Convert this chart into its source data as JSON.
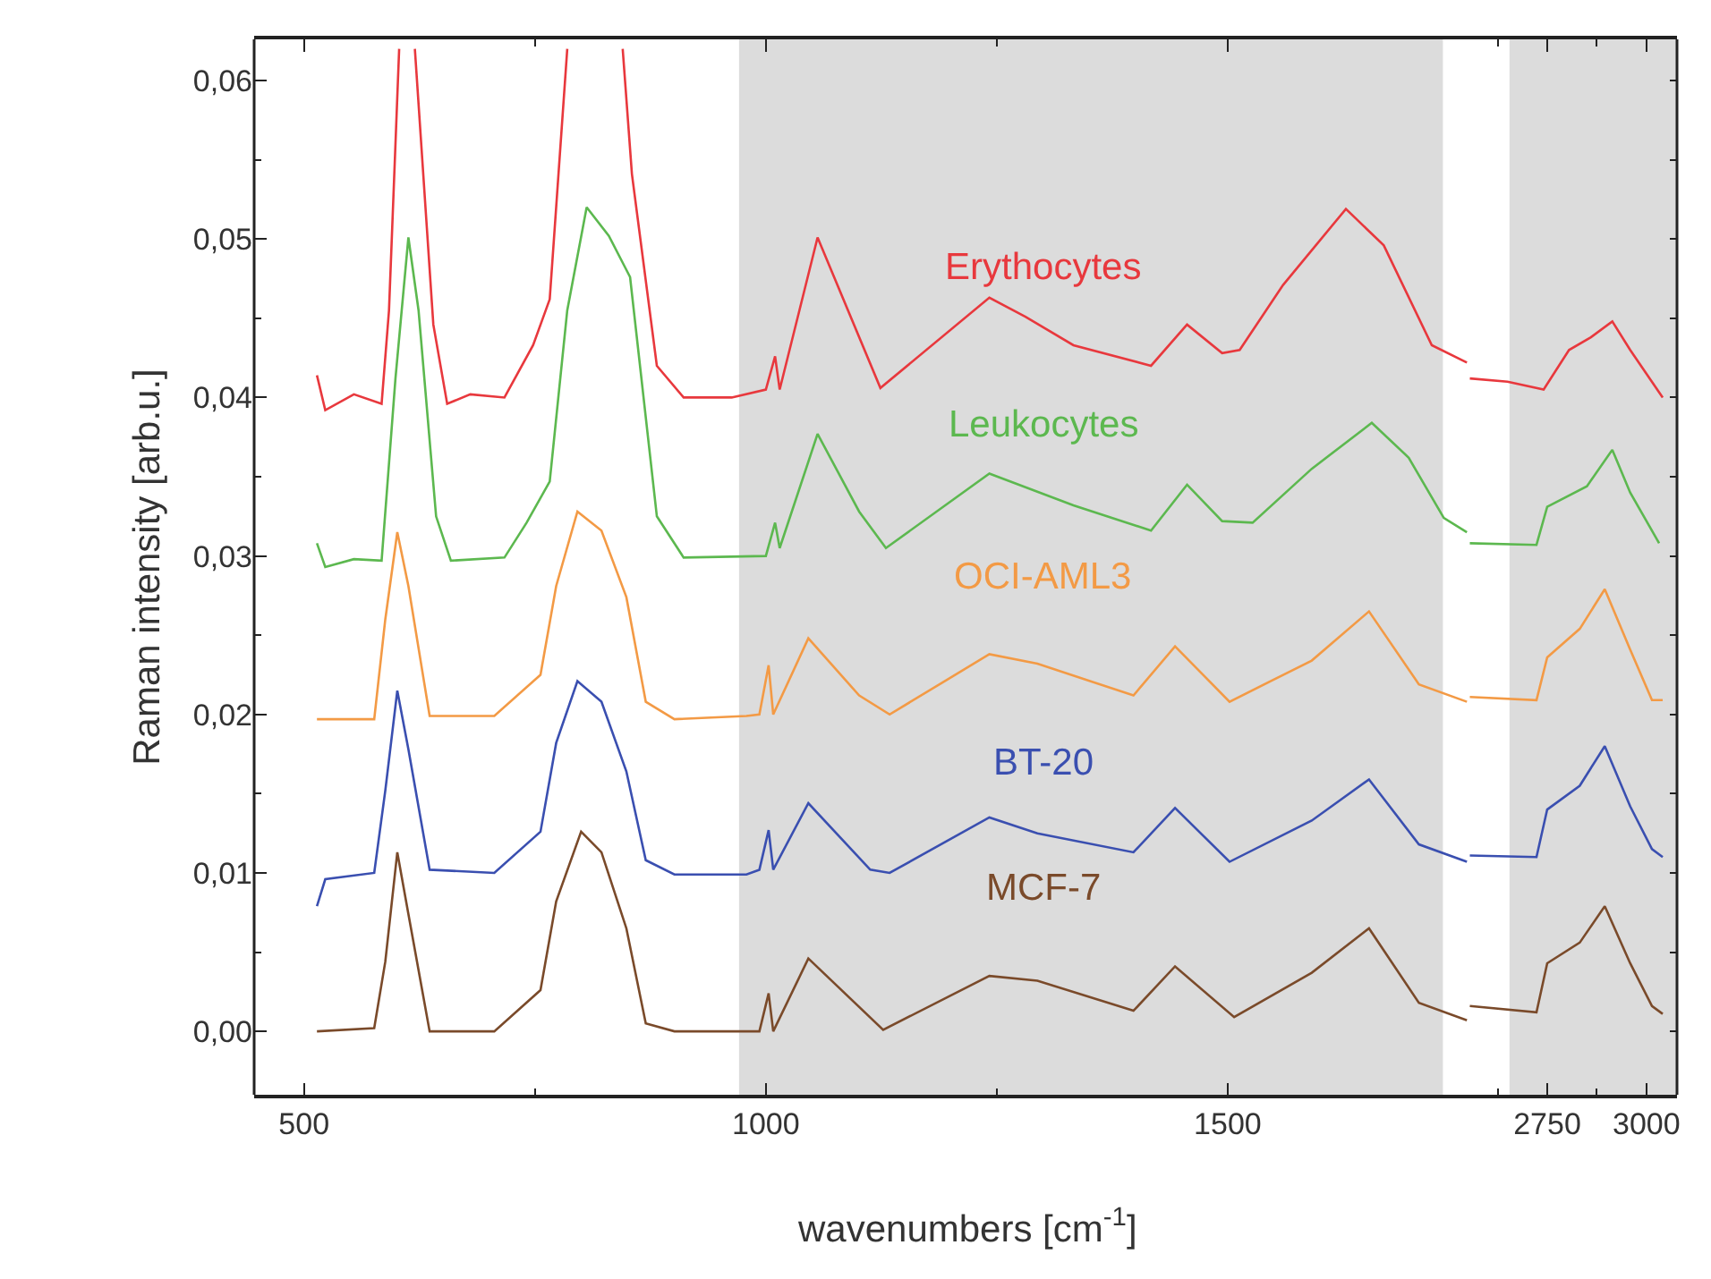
{
  "chart_data": [
    {
      "type": "line",
      "xlabel": "wavenumbers [cm$^{-1}$]",
      "ylabel": "Raman intensity [arb.u.]",
      "xlim": [
        446,
        1760
      ],
      "ylim": [
        -0.004,
        0.0626
      ],
      "xticks": [
        500,
        {
          "value": 750,
          "label": null
        },
        1000,
        {
          "value": 1250,
          "label": null
        },
        1500
      ],
      "yticks": [
        {
          "value": 0,
          "label": "0,00"
        },
        {
          "value": 0.005,
          "label": null
        },
        {
          "value": 0.01,
          "label": "0,01"
        },
        {
          "value": 0.015,
          "label": null
        },
        {
          "value": 0.02,
          "label": "0,02"
        },
        {
          "value": 0.025,
          "label": null
        },
        {
          "value": 0.03,
          "label": "0,03"
        },
        {
          "value": 0.035,
          "label": null
        },
        {
          "value": 0.04,
          "label": "0,04"
        },
        {
          "value": 0.045,
          "label": null
        },
        {
          "value": 0.05,
          "label": "0,05"
        },
        {
          "value": 0.055,
          "label": null
        },
        {
          "value": 0.06,
          "label": "0,06"
        }
      ],
      "bands": [
        {
          "axis": "x",
          "from": 971,
          "to": 1733,
          "color": "#dcdcdc"
        }
      ],
      "series": [
        {
          "name": "Erythocytes",
          "color": "#e8383d",
          "x": [
            514,
            523,
            554,
            584,
            592,
            603,
            611,
            620,
            640,
            655,
            680,
            717,
            748,
            766,
            785,
            815,
            845,
            855,
            882,
            911,
            963,
            1000,
            1010,
            1015,
            1056,
            1124,
            1242,
            1281,
            1333,
            1417,
            1456,
            1494,
            1513,
            1560,
            1628,
            1669,
            1721,
            1759
          ],
          "values": [
            0.0414,
            0.0392,
            0.0402,
            0.0396,
            0.0455,
            0.062,
            null,
            0.062,
            0.0446,
            0.0396,
            0.0402,
            0.04,
            0.0433,
            0.0462,
            0.062,
            null,
            0.062,
            0.0541,
            0.042,
            0.04,
            0.04,
            0.0405,
            0.0426,
            0.0405,
            0.0501,
            0.0406,
            0.0463,
            0.0451,
            0.0433,
            0.042,
            0.0446,
            0.0428,
            0.043,
            0.0471,
            0.0519,
            0.0496,
            0.0433,
            0.0422
          ]
        },
        {
          "name": "Leukocytes",
          "color": "#5cb84f",
          "x": [
            514,
            523,
            554,
            584,
            599,
            613,
            624,
            643,
            659,
            717,
            741,
            766,
            785,
            806,
            830,
            853,
            882,
            911,
            1000,
            1010,
            1015,
            1056,
            1101,
            1130,
            1242,
            1333,
            1417,
            1456,
            1494,
            1527,
            1591,
            1656,
            1696,
            1734,
            1759
          ],
          "values": [
            0.0308,
            0.0293,
            0.0298,
            0.0297,
            0.0412,
            0.0501,
            0.0455,
            0.0325,
            0.0297,
            0.0299,
            0.0321,
            0.0347,
            0.0455,
            0.052,
            0.0502,
            0.0476,
            0.0325,
            0.0299,
            0.03,
            0.0321,
            0.0305,
            0.0377,
            0.0328,
            0.0305,
            0.0352,
            0.0332,
            0.0316,
            0.0345,
            0.0322,
            0.0321,
            0.0355,
            0.0384,
            0.0362,
            0.0324,
            0.0315
          ]
        },
        {
          "name": "OCI-AML3",
          "color": "#f39a45",
          "x": [
            514,
            576,
            588,
            601,
            613,
            636,
            706,
            756,
            773,
            796,
            822,
            849,
            870,
            901,
            979,
            993,
            1003,
            1008,
            1046,
            1101,
            1134,
            1242,
            1294,
            1398,
            1443,
            1502,
            1591,
            1653,
            1707,
            1759
          ],
          "values": [
            0.0197,
            0.0197,
            0.026,
            0.0315,
            0.0281,
            0.0199,
            0.0199,
            0.0225,
            0.0281,
            0.0328,
            0.0316,
            0.0274,
            0.0208,
            0.0197,
            0.0199,
            0.02,
            0.0231,
            0.02,
            0.0248,
            0.0212,
            0.02,
            0.0238,
            0.0232,
            0.0212,
            0.0243,
            0.0208,
            0.0234,
            0.0265,
            0.0219,
            0.0208
          ]
        },
        {
          "name": "BT-20",
          "color": "#3a4fb0",
          "x": [
            514,
            523,
            576,
            588,
            601,
            613,
            636,
            706,
            756,
            773,
            796,
            822,
            849,
            870,
            901,
            979,
            993,
            1003,
            1008,
            1046,
            1113,
            1134,
            1242,
            1294,
            1398,
            1443,
            1502,
            1591,
            1653,
            1707,
            1759
          ],
          "values": [
            0.0079,
            0.0096,
            0.01,
            0.0152,
            0.0215,
            0.0178,
            0.0102,
            0.01,
            0.0126,
            0.0182,
            0.0221,
            0.0208,
            0.0164,
            0.0108,
            0.0099,
            0.0099,
            0.0102,
            0.0127,
            0.0102,
            0.0144,
            0.0102,
            0.01,
            0.0135,
            0.0125,
            0.0113,
            0.0141,
            0.0107,
            0.0133,
            0.0159,
            0.0118,
            0.0107
          ]
        },
        {
          "name": "MCF-7",
          "color": "#7a4a2a",
          "x": [
            514,
            576,
            588,
            601,
            613,
            636,
            706,
            756,
            773,
            800,
            822,
            849,
            870,
            901,
            979,
            993,
            1003,
            1008,
            1046,
            1127,
            1242,
            1294,
            1398,
            1443,
            1507,
            1591,
            1653,
            1707,
            1759
          ],
          "values": [
            0.0,
            0.0002,
            0.0044,
            0.0113,
            0.0074,
            0.0,
            0.0,
            0.0026,
            0.0082,
            0.0126,
            0.0113,
            0.0065,
            0.0005,
            0.0,
            0.0,
            0.0,
            0.0024,
            0.0,
            0.0046,
            0.0001,
            0.0035,
            0.0032,
            0.0013,
            0.0041,
            0.0009,
            0.0037,
            0.0065,
            0.0018,
            0.0007
          ]
        }
      ]
    },
    {
      "type": "line",
      "tick_labels": "x",
      "xlim": [
        2550,
        3077
      ],
      "ylim": [
        -0.004,
        0.0626
      ],
      "xticks": [
        {
          "value": 2625,
          "label": null
        },
        2750,
        {
          "value": 2875,
          "label": null
        },
        3000
      ],
      "yticks": [
        {
          "value": 0,
          "label": null
        },
        {
          "value": 0.005,
          "label": null
        },
        {
          "value": 0.01,
          "label": null
        },
        {
          "value": 0.015,
          "label": null
        },
        {
          "value": 0.02,
          "label": null
        },
        {
          "value": 0.025,
          "label": null
        },
        {
          "value": 0.03,
          "label": null
        },
        {
          "value": 0.035,
          "label": null
        },
        {
          "value": 0.04,
          "label": null
        },
        {
          "value": 0.045,
          "label": null
        },
        {
          "value": 0.05,
          "label": null
        },
        {
          "value": 0.055,
          "label": null
        },
        {
          "value": 0.06,
          "label": null
        }
      ],
      "bands": [
        {
          "axis": "x",
          "from": 2655,
          "to": 3077,
          "color": "#dcdcdc"
        }
      ],
      "series": [
        {
          "color": "#e8383d",
          "x": [
            2555,
            2650,
            2741,
            2805,
            2860,
            2914,
            2959,
            3041
          ],
          "values": [
            0.0412,
            0.041,
            0.0405,
            0.043,
            0.0438,
            0.0448,
            0.043,
            0.04
          ]
        },
        {
          "color": "#5cb84f",
          "x": [
            2555,
            2723,
            2750,
            2850,
            2914,
            2959,
            3032
          ],
          "values": [
            0.0308,
            0.0307,
            0.0331,
            0.0344,
            0.0367,
            0.034,
            0.0308
          ]
        },
        {
          "color": "#f39a45",
          "x": [
            2555,
            2723,
            2750,
            2832,
            2895,
            2959,
            3014,
            3041
          ],
          "values": [
            0.0211,
            0.0209,
            0.0236,
            0.0254,
            0.0279,
            0.0241,
            0.0209,
            0.0209
          ]
        },
        {
          "color": "#3a4fb0",
          "x": [
            2555,
            2723,
            2750,
            2832,
            2895,
            2959,
            3014,
            3041
          ],
          "values": [
            0.0111,
            0.011,
            0.014,
            0.0155,
            0.018,
            0.0142,
            0.0115,
            0.011
          ]
        },
        {
          "color": "#7a4a2a",
          "x": [
            2555,
            2723,
            2750,
            2832,
            2895,
            2959,
            3014,
            3041
          ],
          "values": [
            0.0016,
            0.0012,
            0.0043,
            0.0056,
            0.0079,
            0.0043,
            0.0016,
            0.0011
          ]
        }
      ]
    }
  ]
}
